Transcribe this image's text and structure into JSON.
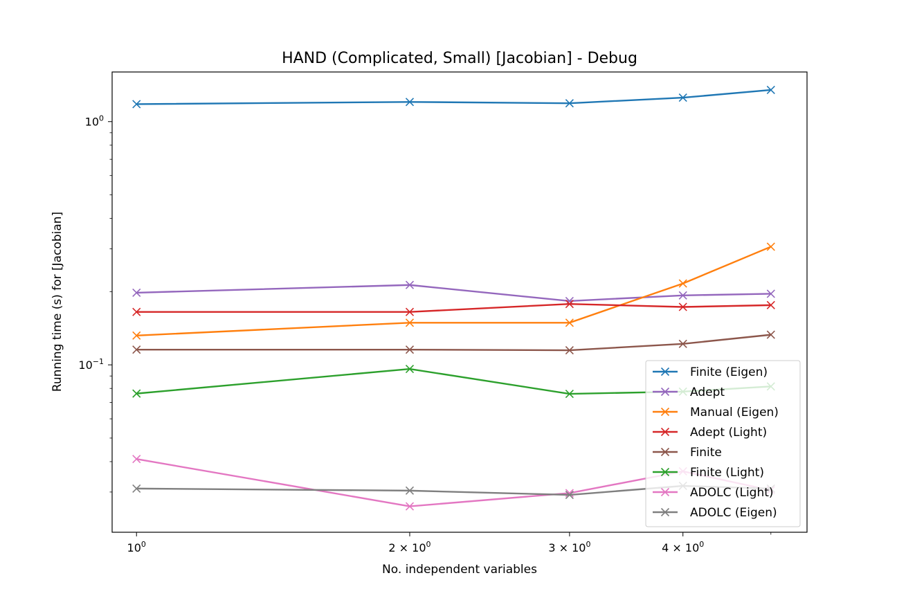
{
  "chart_data": {
    "type": "line",
    "title": "HAND (Complicated, Small) [Jacobian] - Debug",
    "xlabel": "No. independent variables",
    "ylabel": "Running time (s) for [Jacobian]",
    "xscale": "log",
    "yscale": "log",
    "xlim": [
      0.94,
      5.48
    ],
    "ylim": [
      0.0205,
      1.6
    ],
    "x": [
      1,
      2,
      3,
      4,
      5
    ],
    "x_ticks": [
      {
        "value": 1,
        "base": "10",
        "exp": "0",
        "mult": ""
      },
      {
        "value": 2,
        "base": "10",
        "exp": "0",
        "mult": "2 × "
      },
      {
        "value": 3,
        "base": "10",
        "exp": "0",
        "mult": "3 × "
      },
      {
        "value": 4,
        "base": "10",
        "exp": "0",
        "mult": "4 × "
      }
    ],
    "y_ticks": [
      {
        "value": 1.0,
        "base": "10",
        "exp": "0"
      },
      {
        "value": 0.1,
        "base": "10",
        "exp": "−1"
      }
    ],
    "legend_position": "lower-right",
    "grid": false,
    "series": [
      {
        "name": "Finite (Eigen)",
        "color": "#1f77b4",
        "values": [
          1.18,
          1.205,
          1.19,
          1.255,
          1.35
        ]
      },
      {
        "name": "Adept",
        "color": "#9467bd",
        "values": [
          0.198,
          0.213,
          0.183,
          0.193,
          0.196
        ]
      },
      {
        "name": "Manual (Eigen)",
        "color": "#ff7f0e",
        "values": [
          0.132,
          0.149,
          0.149,
          0.216,
          0.306
        ]
      },
      {
        "name": "Adept (Light)",
        "color": "#d62728",
        "values": [
          0.165,
          0.165,
          0.178,
          0.173,
          0.176
        ]
      },
      {
        "name": "Finite",
        "color": "#8c564b",
        "values": [
          0.1155,
          0.1155,
          0.1148,
          0.122,
          0.133
        ]
      },
      {
        "name": "Finite (Light)",
        "color": "#2ca02c",
        "values": [
          0.0762,
          0.0962,
          0.076,
          0.0776,
          0.0815
        ]
      },
      {
        "name": "ADOLC (Light)",
        "color": "#e377c2",
        "values": [
          0.041,
          0.0262,
          0.0297,
          0.0365,
          0.0305
        ]
      },
      {
        "name": "ADOLC (Eigen)",
        "color": "#7f7f7f",
        "values": [
          0.031,
          0.0304,
          0.0292,
          0.0318,
          0.031
        ]
      }
    ]
  }
}
